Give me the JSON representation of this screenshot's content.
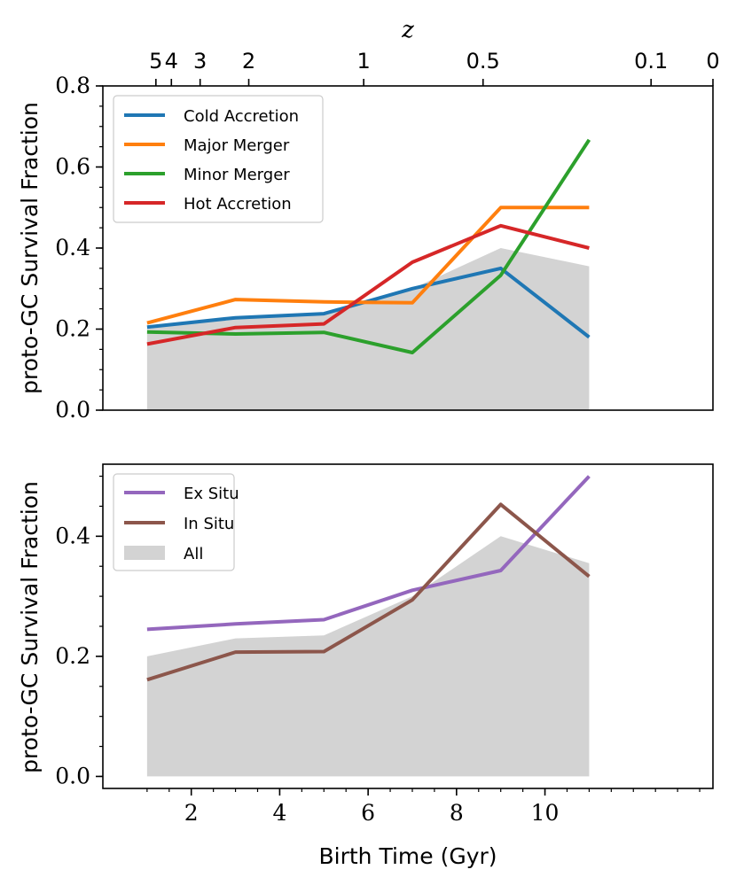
{
  "colors": {
    "cold": "#1f77b4",
    "major": "#ff7f0e",
    "minor": "#2ca02c",
    "hot": "#d62728",
    "exsitu": "#9467bd",
    "insitu": "#8c564b",
    "all": "#d3d3d3"
  },
  "chart_data": [
    {
      "type": "line",
      "title": "",
      "xlabel": "",
      "ylabel": "proto-GC Survival Fraction",
      "secondary_xlabel": "z",
      "secondary_ticks": [
        {
          "label": "5",
          "t": 1.2
        },
        {
          "label": "4",
          "t": 1.55
        },
        {
          "label": "3",
          "t": 2.2
        },
        {
          "label": "2",
          "t": 3.3
        },
        {
          "label": "1",
          "t": 5.9
        },
        {
          "label": "0.5",
          "t": 8.6
        },
        {
          "label": "0.1",
          "t": 12.4
        },
        {
          "label": "0",
          "t": 13.8
        }
      ],
      "xlim": [
        0.0,
        13.8
      ],
      "ylim": [
        0.0,
        0.8
      ],
      "yticks": [
        {
          "value": 0.0,
          "label": "0.0"
        },
        {
          "value": 0.2,
          "label": "0.2"
        },
        {
          "value": 0.4,
          "label": "0.4"
        },
        {
          "value": 0.6,
          "label": "0.6"
        },
        {
          "value": 0.8,
          "label": "0.8"
        }
      ],
      "x": [
        1,
        3,
        5,
        7,
        9,
        11
      ],
      "legend_position": "top-left",
      "fill": {
        "name": "All",
        "color_key": "all",
        "values": [
          0.2,
          0.23,
          0.235,
          0.3,
          0.4,
          0.355
        ]
      },
      "series": [
        {
          "name": "Cold Accretion",
          "color_key": "cold",
          "values": [
            0.205,
            0.228,
            0.238,
            0.3,
            0.35,
            0.18
          ]
        },
        {
          "name": "Major Merger",
          "color_key": "major",
          "values": [
            0.215,
            0.273,
            0.267,
            0.265,
            0.5,
            0.5
          ]
        },
        {
          "name": "Minor Merger",
          "color_key": "minor",
          "values": [
            0.193,
            0.188,
            0.192,
            0.142,
            0.333,
            0.667
          ]
        },
        {
          "name": "Hot Accretion",
          "color_key": "hot",
          "values": [
            0.163,
            0.204,
            0.213,
            0.365,
            0.455,
            0.4
          ]
        }
      ]
    },
    {
      "type": "line",
      "title": "",
      "xlabel": "Birth Time (Gyr)",
      "ylabel": "proto-GC Survival Fraction",
      "xlim": [
        0.0,
        13.8
      ],
      "ylim": [
        -0.02,
        0.52
      ],
      "xticks": [
        {
          "value": 2,
          "label": "2"
        },
        {
          "value": 4,
          "label": "4"
        },
        {
          "value": 6,
          "label": "6"
        },
        {
          "value": 8,
          "label": "8"
        },
        {
          "value": 10,
          "label": "10"
        }
      ],
      "yticks": [
        {
          "value": 0.0,
          "label": "0.0"
        },
        {
          "value": 0.2,
          "label": "0.2"
        },
        {
          "value": 0.4,
          "label": "0.4"
        }
      ],
      "x": [
        1,
        3,
        5,
        7,
        9,
        11
      ],
      "legend_position": "top-left",
      "fill": {
        "name": "All",
        "color_key": "all",
        "values": [
          0.2,
          0.23,
          0.235,
          0.3,
          0.4,
          0.355
        ]
      },
      "series": [
        {
          "name": "Ex Situ",
          "color_key": "exsitu",
          "values": [
            0.245,
            0.254,
            0.261,
            0.31,
            0.343,
            0.5
          ]
        },
        {
          "name": "In Situ",
          "color_key": "insitu",
          "values": [
            0.161,
            0.207,
            0.208,
            0.294,
            0.453,
            0.333
          ]
        }
      ]
    }
  ]
}
